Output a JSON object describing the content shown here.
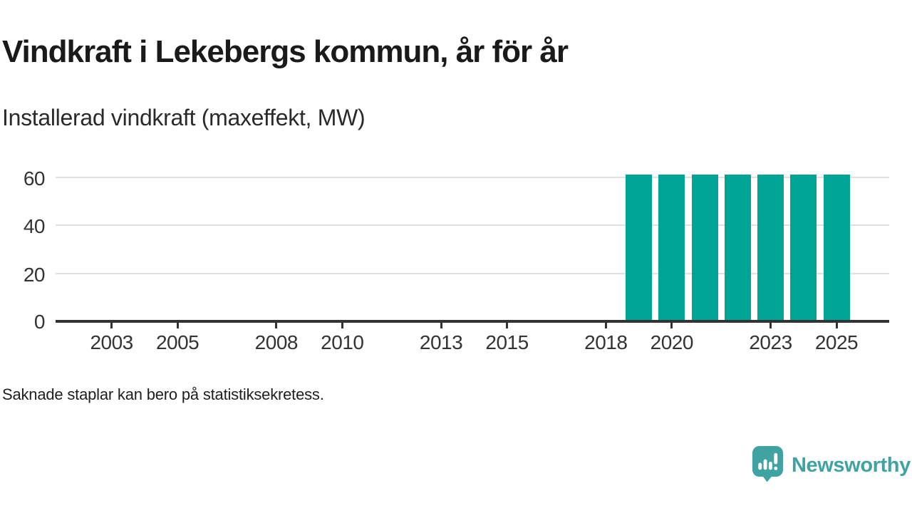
{
  "footnote": "Saknade staplar kan bero på statistiksekretess.",
  "branding": {
    "name": "Newsworthy",
    "icon": "speech-bubble-bar-chart-icon",
    "color": "#3fa3a1"
  },
  "colors": {
    "bar": "#00a596",
    "axis": "#333333",
    "gridline": "#e0e0e0",
    "title_text": "#1a1a1a",
    "tick_text": "#333333"
  },
  "chart_data": {
    "type": "bar",
    "title": "Vindkraft i Lekebergs kommun, år för år",
    "subtitle": "Installerad vindkraft (maxeffekt, MW)",
    "unit": "MW",
    "x": [
      2019,
      2020,
      2021,
      2022,
      2023,
      2024,
      2025
    ],
    "values": [
      61,
      61,
      61,
      61,
      61,
      61,
      61
    ],
    "x_ticks": [
      2003,
      2005,
      2008,
      2010,
      2013,
      2015,
      2018,
      2020,
      2023,
      2025
    ],
    "y_ticks": [
      0,
      20,
      40,
      60
    ],
    "xlim": [
      2001.3,
      2026.6
    ],
    "ylim": [
      0,
      67
    ],
    "grid": true,
    "legend": false
  }
}
